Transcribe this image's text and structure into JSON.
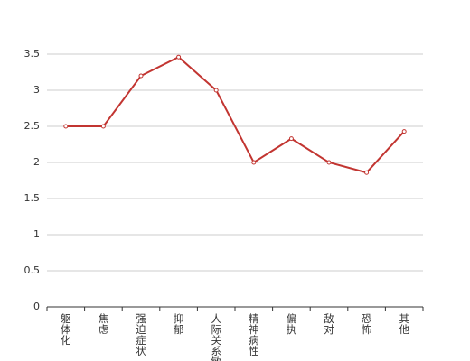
{
  "chart_data": {
    "type": "line",
    "categories": [
      "躯体化",
      "焦虑",
      "强迫症状",
      "抑郁",
      "人际关系敏感",
      "精神病性",
      "偏执",
      "敌对",
      "恐怖",
      "其他"
    ],
    "series": [
      {
        "color": "#c23531",
        "values": [
          2.5,
          2.5,
          3.2,
          3.46,
          3.0,
          2.0,
          2.33,
          2.0,
          1.86,
          2.43
        ]
      }
    ],
    "ylim": [
      0,
      3.5
    ],
    "yticks": [
      0,
      0.5,
      1,
      1.5,
      2,
      2.5,
      3,
      3.5
    ],
    "grid": true
  }
}
